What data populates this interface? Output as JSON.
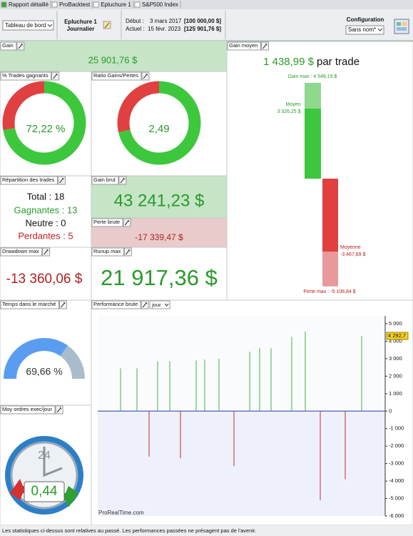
{
  "tabs": [
    "Rapport détaillé",
    "ProBacktest",
    "Epluchure 1",
    "S&P500 Index"
  ],
  "toolbar": {
    "view_select": "Tableau de bord",
    "system_name": "Epluchure 1",
    "timeframe": "Journalier",
    "start_label": "Début :",
    "start_date": "3 mars 2017",
    "start_capital": "[100 000,00 $]",
    "current_label": "Actuel :",
    "current_date": "15 févr. 2023",
    "current_capital": "[125 901,76 $]",
    "config_title": "Configuration",
    "config_select": "Sans nom*"
  },
  "panels": {
    "gain": {
      "title": "Gain",
      "value": "25 901,76 $"
    },
    "win_rate": {
      "title": "% Trades gagnants",
      "value": 72.22,
      "label": "72,22 %"
    },
    "ratio": {
      "title": "Ratio Gains/Pertes",
      "value": 2.49,
      "label": "2,49"
    },
    "avg_gain": {
      "title": "Gain moyen",
      "value": "1 438,99 $",
      "suffix": "par trade",
      "max_label": "Gain max : 4 546,15 $",
      "max": 4546.15,
      "avg_win_label": "Moyen",
      "avg_win_text": "3 326,25 $",
      "avg_win": 3326.25,
      "avg_loss_label": "Moyenne",
      "avg_loss_text": "-3 467,89 $",
      "avg_loss": -3467.89,
      "min_label": "Perte max : -5 108,84 $",
      "min": -5108.84
    },
    "trades": {
      "title": "Répartition des trades",
      "total": "Total : 18",
      "winners": "Gagnantes : 13",
      "neutral": "Neutre : 0",
      "losers": "Perdantes : 5"
    },
    "gross_gain": {
      "title": "Gain brut",
      "value": "43 241,23 $"
    },
    "gross_loss": {
      "title": "Perte brute",
      "value": "-17 339,47 $"
    },
    "drawdown": {
      "title": "Drawdown max",
      "value": "-13 360,06 $"
    },
    "runup": {
      "title": "Runup max",
      "value": "21 917,36 $"
    },
    "time_in_market": {
      "title": "Temps dans le marché",
      "value": 69.66,
      "label": "69,66 %"
    },
    "orders": {
      "title": "Moy ordres exec/jour",
      "value": "0,44",
      "icon_number": "24"
    },
    "performance": {
      "title": "Performance brute",
      "period_select": "jour",
      "values": [
        2450,
        2450,
        -2600,
        2850,
        2850,
        -2700,
        2900,
        2950,
        3000,
        -3150,
        3400,
        3600,
        3600,
        4250,
        4550,
        -5100,
        -3900,
        4300
      ],
      "ylim": [
        -6000,
        5450
      ],
      "yticks": [
        {
          "value": 5000,
          "label": "5 000"
        },
        {
          "value": 4000,
          "label": "4 000"
        },
        {
          "value": 3000,
          "label": "3 000"
        },
        {
          "value": 2000,
          "label": "2 000"
        },
        {
          "value": 1000,
          "label": "1 000"
        },
        0,
        {
          "value": -1000,
          "label": "-1 000"
        },
        {
          "value": -2000,
          "label": "-2 000"
        },
        {
          "value": -3000,
          "label": "-3 000"
        },
        {
          "value": -4000,
          "label": "-4 000"
        },
        {
          "value": -5000,
          "label": "-5 000"
        },
        {
          "value": -6000,
          "label": "-6 000"
        }
      ],
      "last_value_label": "4 292,7",
      "watermark": "ProRealTime.com"
    }
  },
  "footer": "Les statistiques ci-dessus sont relatives au passé. Les performances passées ne présagent pas de l'avenir."
}
